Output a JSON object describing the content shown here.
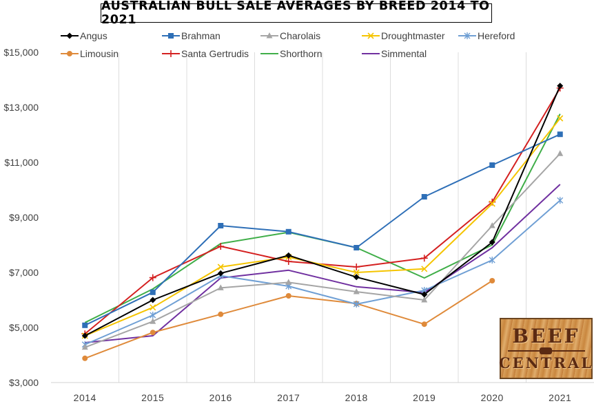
{
  "chart_data": {
    "type": "line",
    "title": "AUSTRALIAN BULL SALE AVERAGES BY BREED 2014 TO 2021",
    "xlabel": "",
    "ylabel": "",
    "x": [
      "2014",
      "2015",
      "2016",
      "2017",
      "2018",
      "2019",
      "2020",
      "2021"
    ],
    "ylim": [
      3000,
      15000
    ],
    "yticks": [
      3000,
      5000,
      7000,
      9000,
      11000,
      13000,
      15000
    ],
    "ytick_labels": [
      "$3,000",
      "$5,000",
      "$7,000",
      "$9,000",
      "$11,000",
      "$13,000",
      "$15,000"
    ],
    "grid": "vertical",
    "legend_position": "top",
    "series": [
      {
        "name": "Angus",
        "color": "#000000",
        "marker": "diamond",
        "values": [
          4700,
          6000,
          6970,
          7620,
          6830,
          6200,
          8100,
          13780
        ]
      },
      {
        "name": "Brahman",
        "color": "#2e6fb7",
        "marker": "square",
        "values": [
          5080,
          6280,
          8700,
          8480,
          7900,
          9750,
          10900,
          12020
        ]
      },
      {
        "name": "Charolais",
        "color": "#a5a5a5",
        "marker": "triangle",
        "values": [
          4280,
          5220,
          6440,
          6640,
          6300,
          6000,
          8700,
          11320
        ]
      },
      {
        "name": "Droughtmaster",
        "color": "#f5c400",
        "marker": "x",
        "values": [
          4700,
          5730,
          7200,
          7560,
          7000,
          7130,
          9500,
          12600
        ]
      },
      {
        "name": "Hereford",
        "color": "#6f9fd4",
        "marker": "star",
        "values": [
          4380,
          5450,
          6880,
          6500,
          5850,
          6350,
          7450,
          9620
        ]
      },
      {
        "name": "Limousin",
        "color": "#df8a3a",
        "marker": "circle",
        "values": [
          3880,
          4820,
          5480,
          6150,
          5870,
          5120,
          6700,
          null
        ]
      },
      {
        "name": "Santa Gertrudis",
        "color": "#d42020",
        "marker": "plus",
        "values": [
          4770,
          6810,
          7950,
          7400,
          7200,
          7520,
          9560,
          13700
        ]
      },
      {
        "name": "Shorthorn",
        "color": "#3fae48",
        "marker": "none",
        "values": [
          5180,
          6400,
          8050,
          8460,
          7900,
          6800,
          8000,
          12760
        ]
      },
      {
        "name": "Simmental",
        "color": "#7030a0",
        "marker": "none",
        "values": [
          4450,
          4700,
          6800,
          7080,
          6480,
          6270,
          7900,
          10200
        ]
      }
    ]
  },
  "logo": {
    "top_text": "BEEF",
    "bottom_text": "CENTRAL"
  }
}
